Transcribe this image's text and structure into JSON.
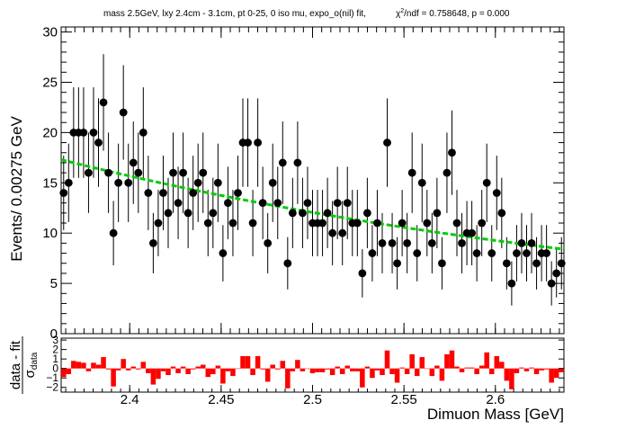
{
  "chart_data": [
    {
      "type": "scatter",
      "title": "mass 2.5GeV, lxy 2.4cm - 3.1cm, pt 0-25, 0 iso mu, expo_o(nil) fit,",
      "chi2_text": {
        "chi": "χ",
        "sup": "2",
        "rest": "/ndf = 0.758648, p = 0.000"
      },
      "ylabel": "Events/ 0.00275 GeV",
      "xlim": [
        2.3625,
        2.6375
      ],
      "ylim": [
        0,
        30.5
      ],
      "yticks": [
        0,
        5,
        10,
        15,
        20,
        25,
        30
      ],
      "ytick_labels": [
        "0",
        "5",
        "10",
        "15",
        "20",
        "25",
        "30"
      ],
      "grid": false,
      "colors": {
        "points": "#000000",
        "fit": "#00cc00",
        "ratio_bars": "#ff0000"
      },
      "series": [
        {
          "values": [
            14,
            15,
            20,
            20,
            20,
            16,
            20,
            19,
            23,
            16,
            10,
            15,
            22,
            15,
            17,
            16,
            20,
            14,
            9,
            11,
            14,
            12,
            16,
            13,
            16,
            12,
            14,
            15,
            16,
            11,
            12,
            15,
            8,
            13,
            11,
            14,
            19,
            19,
            11,
            19,
            13,
            9,
            15,
            13,
            17,
            7,
            12,
            17,
            12,
            13,
            11,
            11,
            11,
            12,
            10,
            13,
            10,
            13,
            11,
            11,
            6,
            12,
            8,
            11,
            9,
            19,
            9,
            7,
            11,
            9,
            16,
            8,
            15,
            11,
            9,
            12,
            7,
            16,
            18,
            11,
            9,
            10,
            10,
            8,
            11,
            15,
            8,
            14,
            12,
            7,
            5,
            8,
            9,
            8,
            9,
            7,
            8,
            8,
            5,
            6,
            7
          ],
          "errors": [
            3.7,
            3.9,
            4.5,
            4.5,
            4.5,
            4.0,
            4.5,
            4.4,
            4.8,
            4.0,
            3.2,
            3.9,
            4.7,
            3.9,
            4.1,
            4.0,
            4.5,
            3.7,
            3.0,
            3.3,
            3.7,
            3.5,
            4.0,
            3.6,
            4.0,
            3.5,
            3.7,
            3.9,
            4.0,
            3.3,
            3.5,
            3.9,
            2.8,
            3.6,
            3.3,
            3.7,
            4.4,
            4.4,
            3.3,
            4.4,
            3.6,
            3.0,
            3.9,
            3.6,
            4.1,
            2.6,
            3.5,
            4.1,
            3.5,
            3.6,
            3.3,
            3.3,
            3.3,
            3.5,
            3.2,
            3.6,
            3.2,
            3.6,
            3.3,
            3.3,
            2.4,
            3.5,
            2.8,
            3.3,
            3.0,
            4.4,
            3.0,
            2.6,
            3.3,
            3.0,
            4.0,
            2.8,
            3.9,
            3.3,
            3.0,
            3.5,
            2.6,
            4.0,
            4.2,
            3.3,
            3.0,
            3.2,
            3.2,
            2.8,
            3.3,
            3.9,
            2.8,
            3.7,
            3.5,
            2.6,
            2.2,
            2.8,
            3.0,
            2.8,
            3.0,
            2.6,
            2.8,
            2.8,
            2.2,
            2.4,
            2.6
          ]
        }
      ],
      "fit": {
        "type": "exponential",
        "x": [
          2.3625,
          2.6375
        ],
        "y": [
          17.3,
          8.4
        ]
      }
    },
    {
      "type": "bar",
      "ylabel_main": "data - fit",
      "ylabel_sigma": "σ",
      "ylabel_sub": "data",
      "xlabel": "Dimuon Mass [GeV]",
      "xlim": [
        2.3625,
        2.6375
      ],
      "ylim": [
        -2.5,
        3.2
      ],
      "yticks": [
        -2,
        -1,
        0,
        1,
        2,
        3
      ],
      "ytick_labels": [
        "−2",
        "−1",
        "0",
        "1",
        "2",
        "3"
      ],
      "xticks": [
        2.4,
        2.45,
        2.5,
        2.55,
        2.6
      ],
      "xtick_labels": [
        "2.4",
        "2.45",
        "2.5",
        "2.55",
        "2.6"
      ],
      "values": [
        -0.9,
        -0.6,
        0.8,
        0.7,
        0.6,
        -0.3,
        0.6,
        0.4,
        1.2,
        -0.1,
        -1.9,
        -0.2,
        1.0,
        -0.2,
        0.2,
        -0.1,
        0.7,
        -0.5,
        -1.7,
        -1.1,
        -0.3,
        -0.7,
        0.2,
        -0.5,
        0.2,
        -0.6,
        -0.1,
        0.2,
        0.4,
        -0.9,
        -0.6,
        0.3,
        -1.6,
        -0.3,
        -0.8,
        0.0,
        1.3,
        1.3,
        -0.7,
        1.3,
        -0.1,
        -1.4,
        0.4,
        -0.1,
        0.8,
        -2.1,
        -0.3,
        0.9,
        -0.3,
        0.0,
        -0.5,
        -0.4,
        -0.4,
        -0.1,
        -0.7,
        0.2,
        -0.6,
        0.3,
        -0.3,
        -0.3,
        -2.0,
        0.2,
        -1.0,
        -0.2,
        -0.7,
        1.9,
        -0.6,
        -1.5,
        0.1,
        -0.6,
        1.5,
        -0.8,
        1.2,
        0.0,
        -0.8,
        0.3,
        -1.3,
        1.5,
        1.9,
        0.2,
        -0.4,
        0.1,
        0.1,
        -0.6,
        0.3,
        1.7,
        -0.6,
        1.3,
        0.7,
        -1.3,
        -2.2,
        -0.5,
        0.1,
        -0.3,
        0.1,
        -0.6,
        -0.2,
        -0.1,
        -1.5,
        -1.0,
        -0.4
      ]
    }
  ]
}
